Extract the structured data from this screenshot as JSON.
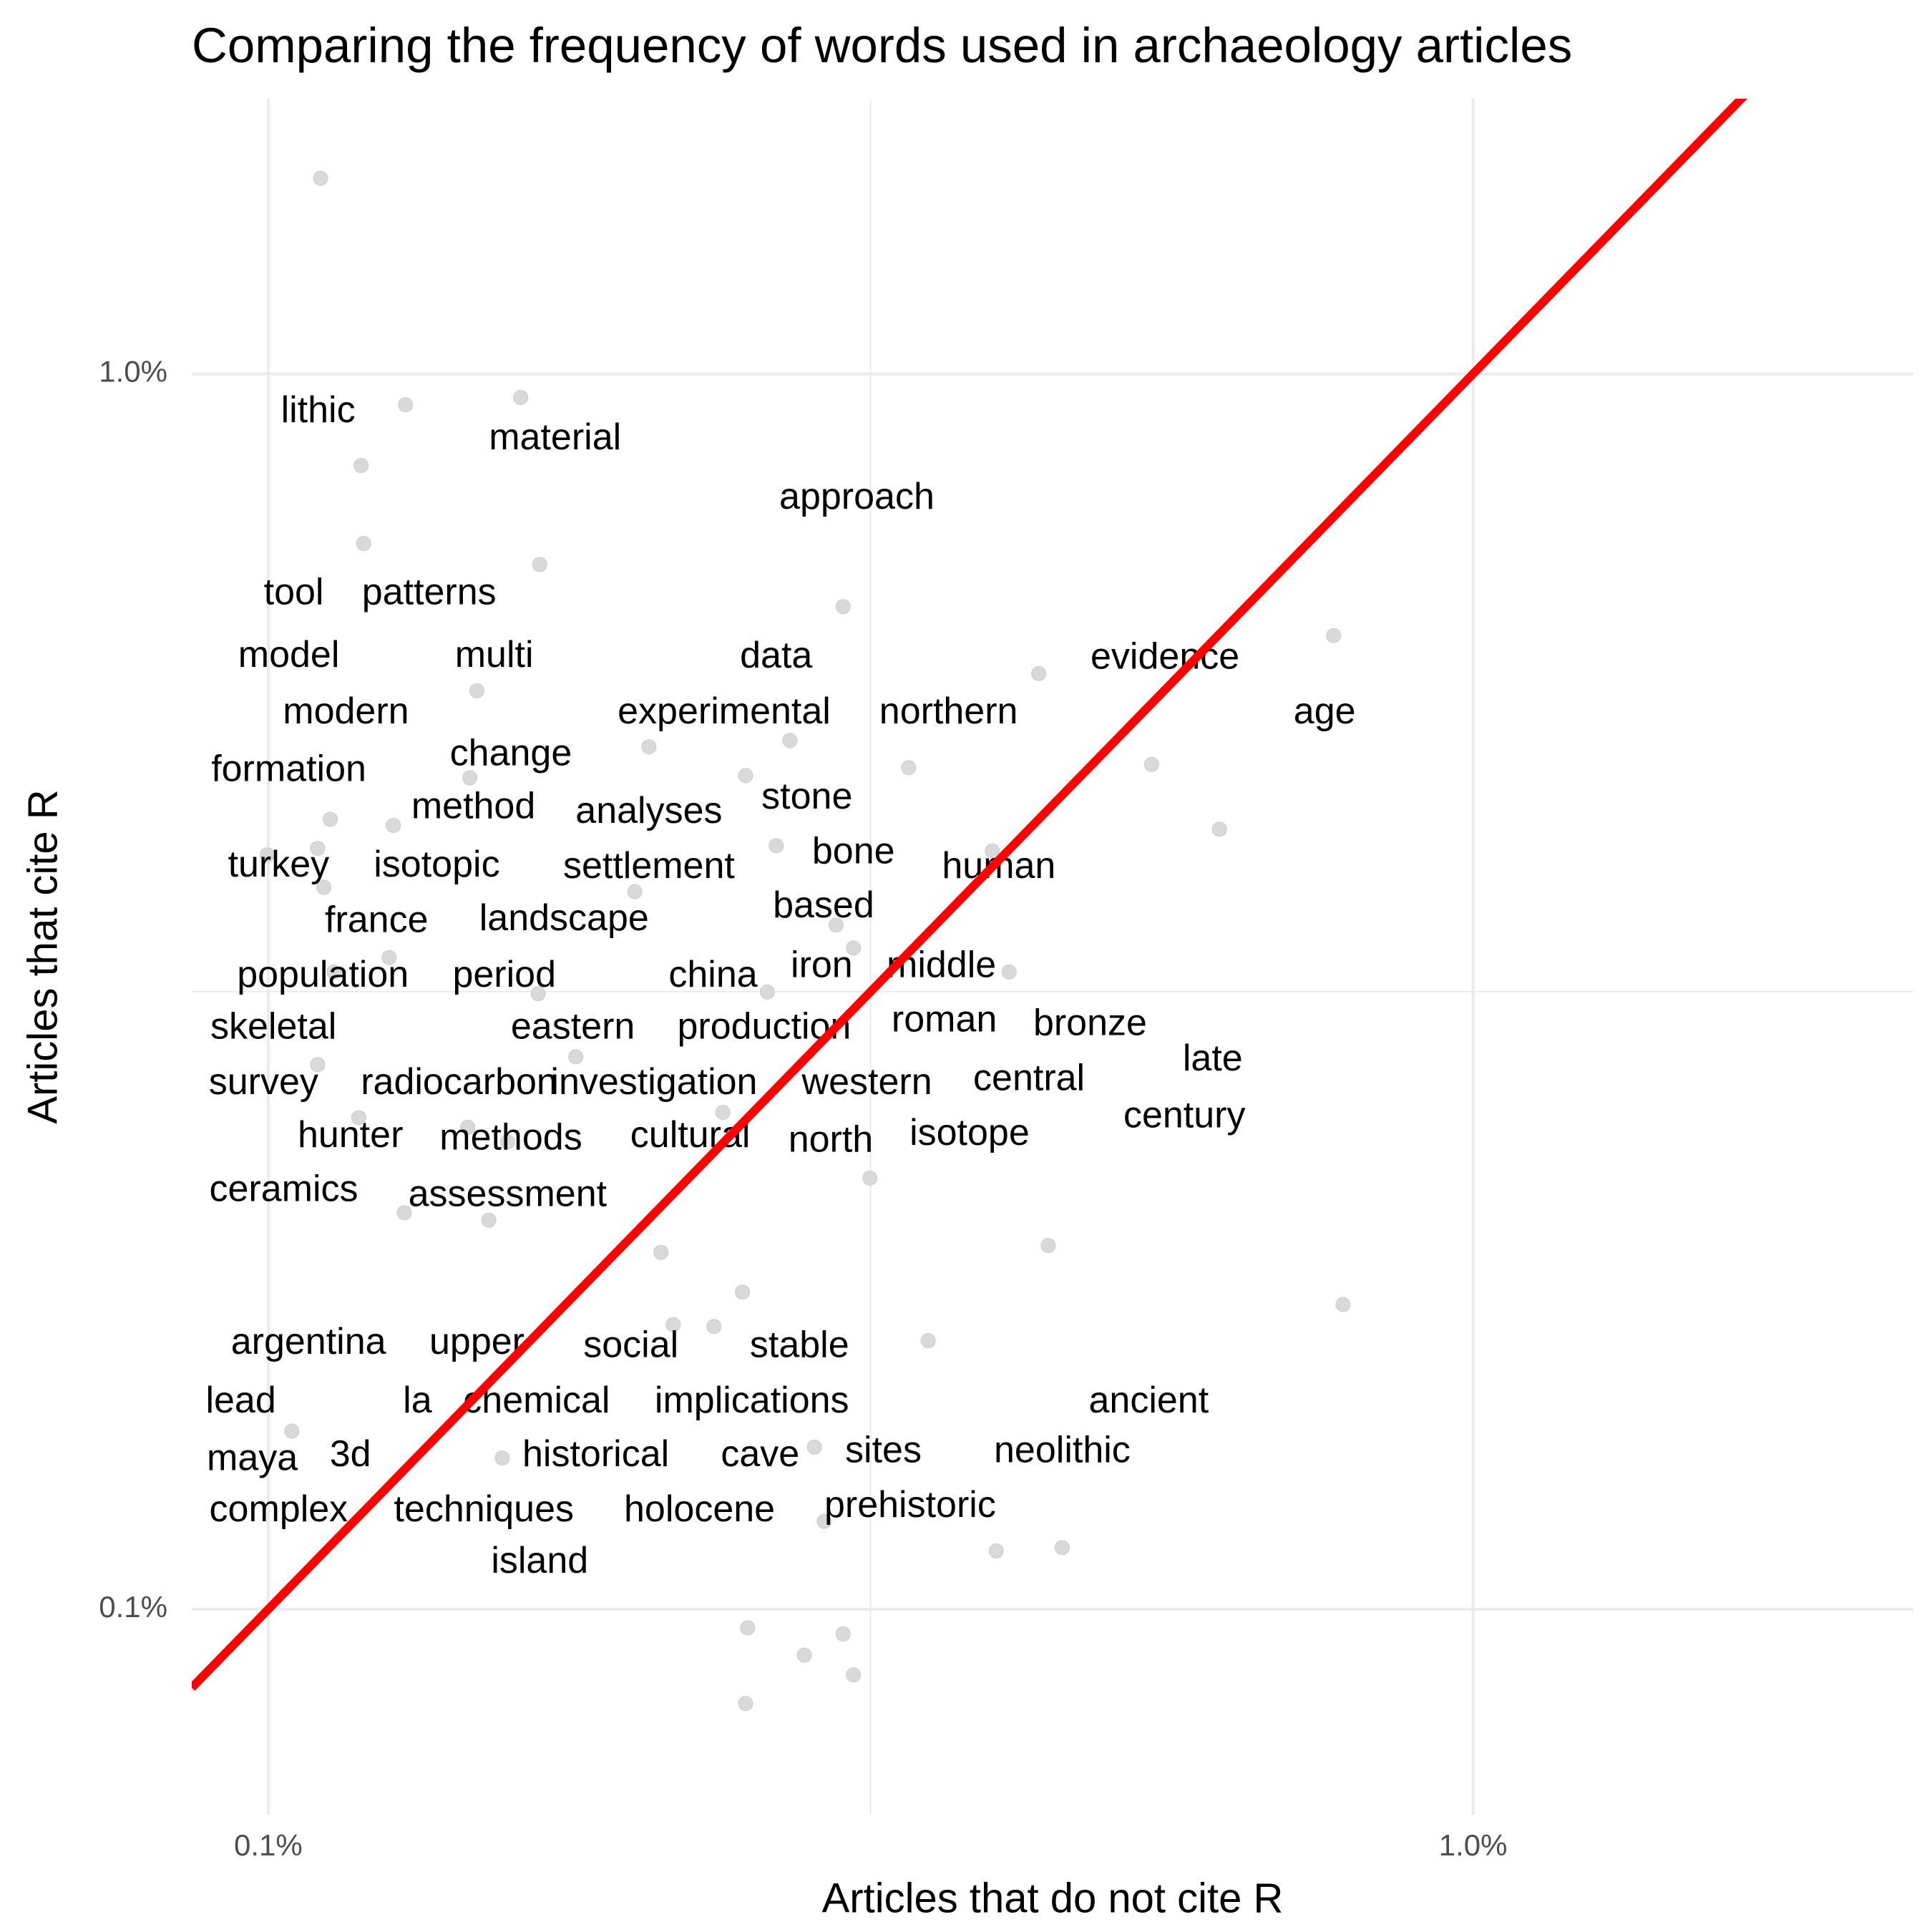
{
  "chart_data": {
    "type": "scatter",
    "title": "Comparing the frequency of words used in archaeology articles",
    "x_label": "Articles that do not cite R",
    "y_label": "Articles that cite R",
    "log_x": true,
    "log_y": true,
    "grid": true,
    "xlim": [
      0.0864,
      2.32
    ],
    "ylim": [
      0.0682,
      1.67
    ],
    "xticks": [
      {
        "value": 0.1,
        "label": "0.1%"
      },
      {
        "value": 1,
        "label": "1.0%"
      }
    ],
    "yticks": [
      {
        "value": 0.1,
        "label": "0.1%"
      },
      {
        "value": 1,
        "label": "1.0%"
      }
    ],
    "minor_xticks": [
      0.3162
    ],
    "minor_yticks": [
      0.3162
    ],
    "series": [
      {
        "color": "#d9d9d9",
        "x": [
          0.1105,
          0.13,
          0.162,
          0.1194,
          0.12,
          0.168,
          0.3,
          0.766,
          0.436,
          0.149,
          0.207,
          0.271,
          0.34,
          0.249,
          0.541,
          0.147,
          0.1126,
          0.127,
          0.616,
          0.264,
          0.399,
          0.0998,
          0.1099,
          0.1112,
          0.2015,
          0.296,
          0.306,
          0.126,
          0.1134,
          0.412,
          0.1675,
          0.2596,
          0.18,
          0.1099,
          0.1189,
          0.1464,
          0.2384,
          0.158,
          0.3158,
          0.1297,
          0.1524,
          0.2118,
          0.444,
          0.2475,
          0.78,
          0.2168,
          0.2344,
          0.353,
          0.1046,
          0.1564,
          0.284,
          0.2894,
          0.402,
          0.456,
          0.25,
          0.3,
          0.2786,
          0.306,
          0.249
        ],
        "y": [
          1.44,
          0.944,
          0.957,
          0.843,
          0.729,
          0.701,
          0.648,
          0.614,
          0.572,
          0.554,
          0.499,
          0.505,
          0.48,
          0.473,
          0.483,
          0.471,
          0.436,
          0.431,
          0.428,
          0.415,
          0.411,
          0.408,
          0.413,
          0.384,
          0.381,
          0.358,
          0.343,
          0.337,
          0.328,
          0.328,
          0.315,
          0.316,
          0.28,
          0.276,
          0.25,
          0.2456,
          0.2525,
          0.239,
          0.2234,
          0.2094,
          0.2065,
          0.1945,
          0.197,
          0.1806,
          0.1765,
          0.17,
          0.1694,
          0.165,
          0.1394,
          0.1326,
          0.1353,
          0.1178,
          0.1115,
          0.1122,
          0.0966,
          0.0955,
          0.0918,
          0.0885,
          0.0839
        ]
      }
    ],
    "labels": {
      "color": "#000000",
      "texts": [
        "lithic",
        "material",
        "approach",
        "tool",
        "patterns",
        "model",
        "multi",
        "data",
        "evidence",
        "modern",
        "experimental",
        "northern",
        "age",
        "formation",
        "change",
        "method",
        "analyses",
        "stone",
        "turkey",
        "isotopic",
        "settlement",
        "bone",
        "human",
        "france",
        "landscape",
        "based",
        "population",
        "period",
        "china",
        "iron",
        "middle",
        "skeletal",
        "eastern",
        "production",
        "roman",
        "bronze",
        "late",
        "survey",
        "radiocarbon",
        "investigation",
        "western",
        "central",
        "century",
        "hunter",
        "methods",
        "cultural",
        "north",
        "isotope",
        "ceramics",
        "assessment",
        "argentina",
        "upper",
        "social",
        "stable",
        "lead",
        "la",
        "chemical",
        "implications",
        "ancient",
        "maya",
        "3d",
        "historical",
        "cave",
        "sites",
        "neolithic",
        "complex",
        "techniques",
        "holocene",
        "prehistoric",
        "island"
      ],
      "x": [
        0.11,
        0.173,
        0.308,
        0.105,
        0.136,
        0.104,
        0.154,
        0.264,
        0.555,
        0.116,
        0.239,
        0.367,
        0.753,
        0.104,
        0.159,
        0.148,
        0.207,
        0.28,
        0.102,
        0.138,
        0.207,
        0.306,
        0.404,
        0.123,
        0.176,
        0.289,
        0.111,
        0.157,
        0.234,
        0.288,
        0.362,
        0.101,
        0.179,
        0.258,
        0.364,
        0.481,
        0.608,
        0.0991,
        0.144,
        0.209,
        0.314,
        0.428,
        0.576,
        0.117,
        0.159,
        0.224,
        0.293,
        0.382,
        0.103,
        0.158,
        0.108,
        0.149,
        0.2,
        0.276,
        0.0949,
        0.133,
        0.167,
        0.252,
        0.538,
        0.097,
        0.117,
        0.187,
        0.256,
        0.324,
        0.456,
        0.102,
        0.151,
        0.228,
        0.341,
        0.168
      ],
      "y": [
        0.931,
        0.885,
        0.792,
        0.663,
        0.663,
        0.59,
        0.59,
        0.589,
        0.588,
        0.531,
        0.531,
        0.531,
        0.531,
        0.477,
        0.491,
        0.445,
        0.441,
        0.453,
        0.399,
        0.399,
        0.398,
        0.409,
        0.398,
        0.36,
        0.361,
        0.37,
        0.325,
        0.325,
        0.325,
        0.331,
        0.331,
        0.295,
        0.295,
        0.295,
        0.299,
        0.297,
        0.278,
        0.266,
        0.266,
        0.266,
        0.266,
        0.268,
        0.25,
        0.241,
        0.24,
        0.241,
        0.239,
        0.242,
        0.218,
        0.216,
        0.164,
        0.164,
        0.163,
        0.163,
        0.147,
        0.147,
        0.147,
        0.147,
        0.147,
        0.132,
        0.133,
        0.133,
        0.133,
        0.134,
        0.134,
        0.12,
        0.12,
        0.12,
        0.121,
        0.109
      ]
    },
    "reference_line": {
      "slope": 1,
      "intercept": 0,
      "color": "#ff0000"
    }
  }
}
